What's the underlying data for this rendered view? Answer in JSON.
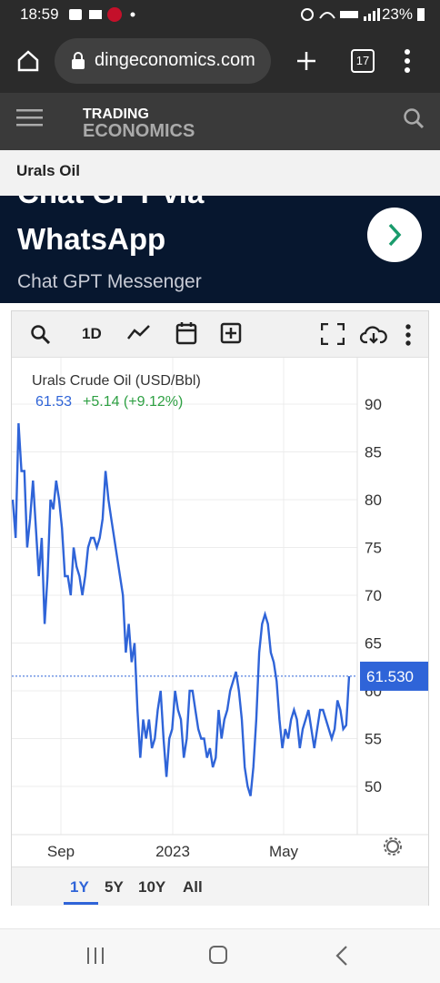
{
  "status_bar": {
    "time": "18:59",
    "battery": "23%"
  },
  "browser": {
    "url": "dingeconomics.com",
    "tab_count": "17"
  },
  "site": {
    "logo_line1": "TRADING",
    "logo_line2": "ECONOMICS"
  },
  "page": {
    "title": "Urals Oil"
  },
  "ad": {
    "title_partial": "Chat GPT via",
    "title": "WhatsApp",
    "subtitle": "Chat GPT Messenger"
  },
  "chart": {
    "toolbar": {
      "interval_label": "1D"
    },
    "legend_name": "Urals Crude Oil (USD/Bbl)",
    "legend_value": "61.53",
    "legend_change": "+5.14 (+9.12%)",
    "last_price_label": "61.530",
    "ranges": [
      "1Y",
      "5Y",
      "10Y",
      "All"
    ],
    "active_range": "1Y",
    "colors": {
      "line": "#2f64d8",
      "change": "#2ea043",
      "price_tag": "#2f64d8",
      "active_range": "#2f64d8"
    }
  },
  "chart_data": {
    "type": "line",
    "title": "Urals Crude Oil (USD/Bbl)",
    "x_tick_labels": [
      "Sep",
      "2023",
      "May"
    ],
    "y_tick_labels": [
      "90",
      "85",
      "80",
      "75",
      "70",
      "65",
      "60",
      "55",
      "50"
    ],
    "ylim": [
      46,
      94
    ],
    "last_value": 61.53,
    "grid": true,
    "series": [
      {
        "values": [
          80,
          76,
          88,
          83,
          83,
          75,
          78,
          82,
          77,
          72,
          76,
          67,
          72,
          80,
          79,
          82,
          80,
          77,
          72,
          72,
          70,
          75,
          73,
          72,
          70,
          72,
          75,
          76,
          76,
          75,
          76,
          78,
          83,
          80,
          78,
          76,
          74,
          72,
          70,
          64,
          67,
          63,
          65,
          58,
          53,
          57,
          55,
          57,
          54,
          55,
          58,
          60,
          55,
          51,
          55,
          56,
          60,
          58,
          57,
          53,
          55,
          60,
          60,
          58,
          56,
          55,
          55,
          53,
          54,
          52,
          53,
          58,
          55,
          57,
          58,
          60,
          61,
          62,
          60,
          57,
          52,
          50,
          49,
          52,
          57,
          64,
          67,
          68,
          67,
          64,
          63,
          61,
          57,
          54,
          56,
          55,
          57,
          58,
          57,
          54,
          56,
          57,
          58,
          56,
          54,
          56,
          58,
          58,
          57,
          56,
          55,
          56,
          59,
          58,
          56,
          56.4,
          61.53
        ]
      }
    ]
  }
}
